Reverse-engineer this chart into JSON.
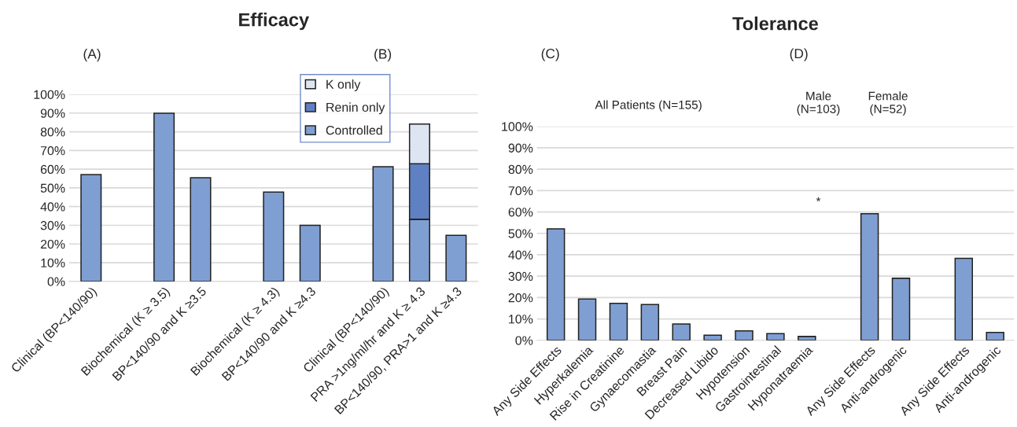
{
  "chart_data": [
    {
      "type": "bar",
      "title": "Efficacy",
      "annotations": [
        "(A)",
        "(B)"
      ],
      "categories": [
        "Clinical (BP<140/90)",
        null,
        "Biochemical (K ≥ 3.5)",
        "BP<140/90 and K ≥3.5",
        null,
        "Biochemical (K ≥ 4.3)",
        "BP<140/90 and K ≥4.3",
        null,
        "Clinical (BP<140/90)",
        "PRA >1ng/ml/hr and K ≥ 4.3",
        "BP<140/90, PRA>1 and K ≥4.3"
      ],
      "stacked": true,
      "series": [
        {
          "name": "Controlled",
          "color": "#7f9fd3",
          "values": [
            57.1,
            null,
            89.9,
            55.4,
            null,
            47.8,
            30.0,
            null,
            61.3,
            33.2,
            24.6
          ]
        },
        {
          "name": "Renin only",
          "color": "#5f80c2",
          "values": [
            null,
            null,
            null,
            null,
            null,
            null,
            null,
            null,
            null,
            29.7,
            null
          ]
        },
        {
          "name": "K only",
          "color": "#dde5f3",
          "values": [
            null,
            null,
            null,
            null,
            null,
            null,
            null,
            null,
            null,
            21.2,
            null
          ]
        }
      ],
      "ylim": [
        0,
        100
      ],
      "yticks": [
        {
          "value": 0,
          "label": "0%"
        },
        {
          "value": 10,
          "label": "10%"
        },
        {
          "value": 20,
          "label": "20%"
        },
        {
          "value": 30,
          "label": "30%"
        },
        {
          "value": 40,
          "label": "40%"
        },
        {
          "value": 50,
          "label": "50%"
        },
        {
          "value": 60,
          "label": "60%"
        },
        {
          "value": 70,
          "label": "70%"
        },
        {
          "value": 80,
          "label": "80%"
        },
        {
          "value": 90,
          "label": "90%"
        },
        {
          "value": 100,
          "label": "100%"
        }
      ],
      "grid": "y",
      "legend": "top right"
    },
    {
      "type": "bar",
      "title": "Tolerance",
      "annotations": [
        "(C)",
        "(D)",
        "All Patients (N=155)",
        "Male\n(N=103)",
        "Female\n(N=52)",
        "*"
      ],
      "categories": [
        "Any Side Effects",
        "Hyperkalemia",
        "Rise in Creatinine",
        "Gynaecomastia",
        "Breast Pain",
        "Decreased Libido",
        "Hypotension",
        "Gastrointestinal",
        "Hyponatraemia",
        null,
        "Any Side Effects",
        "Anti-androgenic",
        null,
        "Any Side Effects",
        "Anti-androgenic"
      ],
      "values": [
        52.1,
        19.3,
        17.3,
        16.7,
        7.6,
        2.4,
        4.4,
        3.1,
        1.8,
        null,
        59.2,
        29.0,
        null,
        38.3,
        3.7
      ],
      "color": "#7f9fd3",
      "ylim": [
        0,
        100
      ],
      "yticks": [
        {
          "value": 0,
          "label": "0%"
        },
        {
          "value": 10,
          "label": "10%"
        },
        {
          "value": 20,
          "label": "20%"
        },
        {
          "value": 30,
          "label": "30%"
        },
        {
          "value": 40,
          "label": "40%"
        },
        {
          "value": 50,
          "label": "50%"
        },
        {
          "value": 60,
          "label": "60%"
        },
        {
          "value": 70,
          "label": "70%"
        },
        {
          "value": 80,
          "label": "80%"
        },
        {
          "value": 90,
          "label": "90%"
        },
        {
          "value": 100,
          "label": "100%"
        }
      ],
      "grid": "y"
    }
  ]
}
